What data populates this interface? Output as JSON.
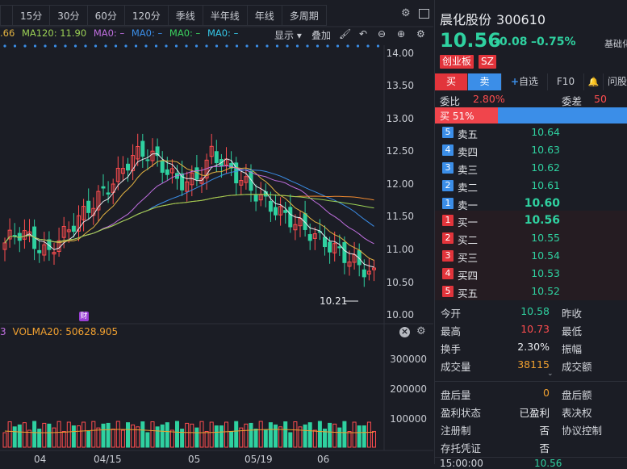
{
  "toolbar": {
    "tabs": [
      "15分",
      "30分",
      "60分",
      "120分",
      "季线",
      "半年线",
      "年线",
      "多周期"
    ]
  },
  "ma_legend": {
    "ma60": ".66",
    "ma120": "MA120: 11.90",
    "ma0a": "MA0: –",
    "ma0b": "MA0: –",
    "ma0c": "MA0: –",
    "ma0d": "MA0: –",
    "show_label": "显示",
    "overlay_label": "叠加"
  },
  "price_axis": [
    "14.00",
    "13.50",
    "13.00",
    "12.50",
    "12.00",
    "11.50",
    "11.00",
    "10.50",
    "10.00"
  ],
  "low_marker": "10.21",
  "event_badge": "财",
  "volume_legend": {
    "prefix": "3",
    "label": "VOLMA20: 50628.905"
  },
  "volume_axis": [
    "300000",
    "200000",
    "100000"
  ],
  "date_axis": [
    "04",
    "04/15",
    "05",
    "05/19",
    "06"
  ],
  "quote": {
    "name": "晨化股份",
    "code": "300610",
    "price": "10.56",
    "change": "–0.08",
    "change_pct": "–0.75%",
    "side_label": "基础化",
    "tags": [
      "创业板",
      "SZ"
    ]
  },
  "actions": {
    "buy": "买",
    "sell": "卖",
    "watch": "自选",
    "f10": "F10",
    "ask": "问股"
  },
  "order_book": {
    "weibi_label": "委比",
    "weibi_value": "2.80%",
    "weicha_label": "委差",
    "weicha_value": "50",
    "buy_ratio": "买 51%",
    "buy_ratio_pct": 51,
    "asks": [
      {
        "idx": "5",
        "label": "卖五",
        "price": "10.64"
      },
      {
        "idx": "4",
        "label": "卖四",
        "price": "10.63"
      },
      {
        "idx": "3",
        "label": "卖三",
        "price": "10.62"
      },
      {
        "idx": "2",
        "label": "卖二",
        "price": "10.61"
      },
      {
        "idx": "1",
        "label": "卖一",
        "price": "10.60"
      }
    ],
    "bids": [
      {
        "idx": "1",
        "label": "买一",
        "price": "10.56"
      },
      {
        "idx": "2",
        "label": "买二",
        "price": "10.55"
      },
      {
        "idx": "3",
        "label": "买三",
        "price": "10.54"
      },
      {
        "idx": "4",
        "label": "买四",
        "price": "10.53"
      },
      {
        "idx": "5",
        "label": "买五",
        "price": "10.52"
      }
    ]
  },
  "stats": [
    {
      "label": "今开",
      "value": "10.58",
      "color": "#2fd1a0",
      "label2": "昨收"
    },
    {
      "label": "最高",
      "value": "10.73",
      "color": "#ff4d4f",
      "label2": "最低"
    },
    {
      "label": "换手",
      "value": "2.30%",
      "color": "#e8eaee",
      "label2": "振幅"
    },
    {
      "label": "成交量",
      "value": "38115",
      "color": "#f0a030",
      "label2": "成交额"
    }
  ],
  "stats2": [
    {
      "label": "盘后量",
      "value": "0",
      "color": "#f0a030",
      "label2": "盘后额"
    },
    {
      "label": "盈利状态",
      "value": "已盈利",
      "color": "#e8eaee",
      "label2": "表决权"
    },
    {
      "label": "注册制",
      "value": "否",
      "color": "#e8eaee",
      "label2": "协议控制"
    },
    {
      "label": "存托凭证",
      "value": "否",
      "color": "#e8eaee",
      "label2": ""
    }
  ],
  "tick": {
    "time": "15:00:00",
    "price": "10.56"
  },
  "colors": {
    "up": "#ff4d4f",
    "down": "#2fd1a0",
    "accent_blue": "#3b8ee8"
  }
}
